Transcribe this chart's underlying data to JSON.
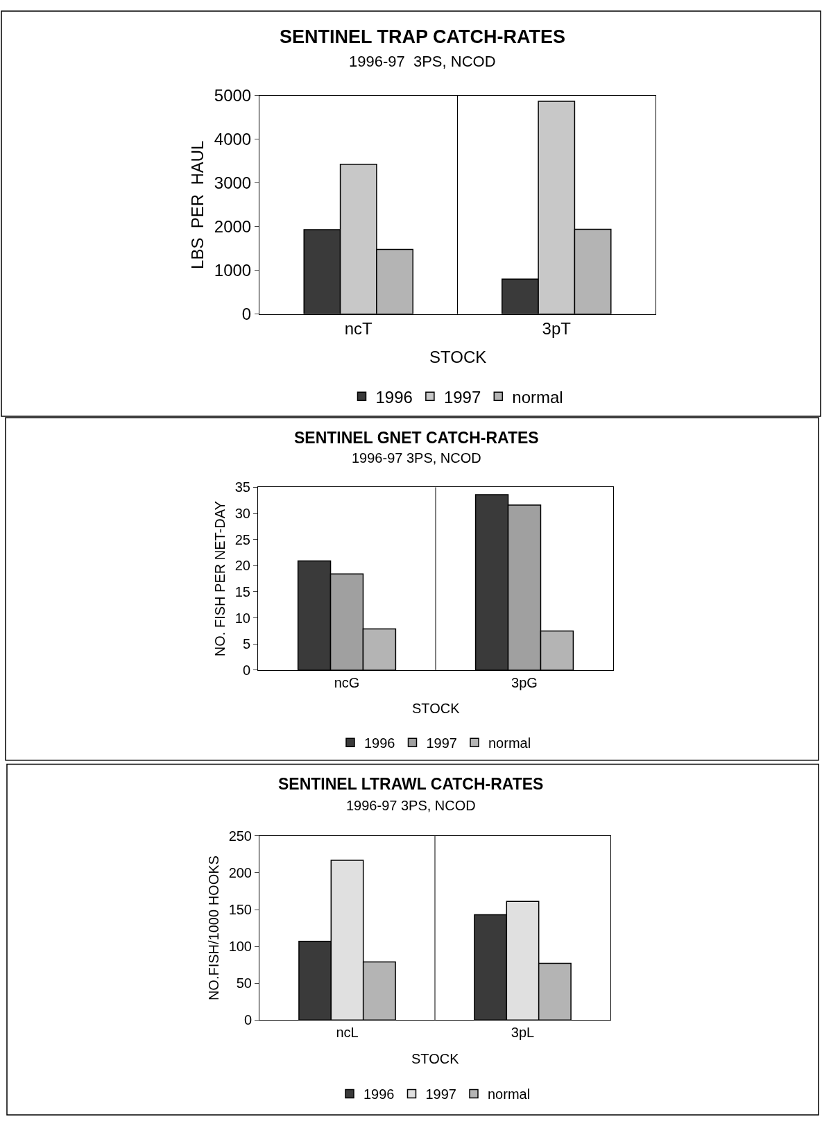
{
  "chart_data": [
    {
      "type": "bar",
      "title": "SENTINEL TRAP CATCH-RATES",
      "subtitle": "1996-97  3PS, NCOD",
      "xlabel": "STOCK",
      "ylabel": "LBS  PER  HAUL",
      "categories": [
        "ncT",
        "3pT"
      ],
      "ylim": [
        0,
        5000
      ],
      "yticks": [
        0,
        1000,
        2000,
        3000,
        4000,
        5000
      ],
      "grid": "x",
      "legend": "bottom",
      "series": [
        {
          "name": "1996",
          "color": "#3a3a3a",
          "values": [
            1930,
            800
          ]
        },
        {
          "name": "1997",
          "color": "#c8c8c8",
          "values": [
            3430,
            4870
          ]
        },
        {
          "name": "normal",
          "color": "#b4b4b4",
          "values": [
            1480,
            1940
          ]
        }
      ]
    },
    {
      "type": "bar",
      "title": "SENTINEL GNET CATCH-RATES",
      "subtitle": "1996-97 3PS, NCOD",
      "xlabel": "STOCK",
      "ylabel": "NO. FISH PER NET-DAY",
      "categories": [
        "ncG",
        "3pG"
      ],
      "ylim": [
        0,
        35
      ],
      "yticks": [
        0,
        5,
        10,
        15,
        20,
        25,
        30,
        35
      ],
      "grid": "x",
      "legend": "bottom",
      "series": [
        {
          "name": "1996",
          "color": "#3a3a3a",
          "values": [
            20.9,
            33.6
          ]
        },
        {
          "name": "1997",
          "color": "#a0a0a0",
          "values": [
            18.4,
            31.6
          ]
        },
        {
          "name": "normal",
          "color": "#b4b4b4",
          "values": [
            7.9,
            7.5
          ]
        }
      ]
    },
    {
      "type": "bar",
      "title": "SENTINEL LTRAWL CATCH-RATES",
      "subtitle": "1996-97 3PS, NCOD",
      "xlabel": "STOCK",
      "ylabel": "NO.FISH/1000 HOOKS",
      "categories": [
        "ncL",
        "3pL"
      ],
      "ylim": [
        0,
        250
      ],
      "yticks": [
        0,
        50,
        100,
        150,
        200,
        250
      ],
      "grid": "x",
      "legend": "bottom",
      "series": [
        {
          "name": "1996",
          "color": "#3a3a3a",
          "values": [
            107,
            143
          ]
        },
        {
          "name": "1997",
          "color": "#e0e0e0",
          "values": [
            217,
            161
          ]
        },
        {
          "name": "normal",
          "color": "#b4b4b4",
          "values": [
            79,
            77
          ]
        }
      ]
    }
  ]
}
